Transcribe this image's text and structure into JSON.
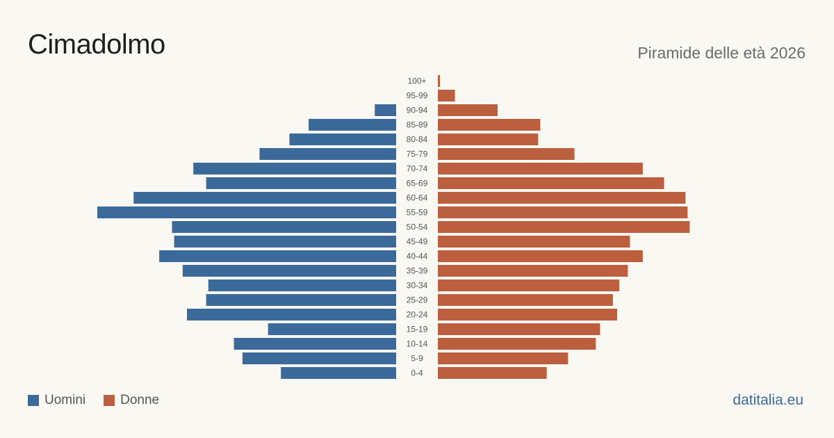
{
  "header": {
    "title": "Cimadolmo",
    "subtitle": "Piramide delle età 2026"
  },
  "footer": {
    "source": "datitalia.eu"
  },
  "colors": {
    "male": "#3b6a9a",
    "female": "#bb5f3e"
  },
  "chart_data": {
    "type": "bar",
    "orientation": "horizontal-population-pyramid",
    "categories": [
      "100+",
      "95-99",
      "90-94",
      "85-89",
      "80-84",
      "75-79",
      "70-74",
      "65-69",
      "60-64",
      "55-59",
      "50-54",
      "45-49",
      "40-44",
      "35-39",
      "30-34",
      "25-29",
      "20-24",
      "15-19",
      "10-14",
      "5-9",
      "0-4"
    ],
    "series": [
      {
        "name": "Uomini",
        "color": "#3b6a9a",
        "values": [
          0,
          0,
          10,
          41,
          50,
          64,
          95,
          89,
          123,
          140,
          105,
          104,
          111,
          100,
          88,
          89,
          98,
          60,
          76,
          72,
          54
        ]
      },
      {
        "name": "Donne",
        "color": "#bb5f3e",
        "values": [
          1,
          8,
          28,
          48,
          47,
          64,
          96,
          106,
          116,
          117,
          118,
          90,
          96,
          89,
          85,
          82,
          84,
          76,
          74,
          61,
          51
        ]
      }
    ],
    "xlim": [
      0,
      140
    ],
    "grid": false,
    "legend": "bottom-left"
  }
}
